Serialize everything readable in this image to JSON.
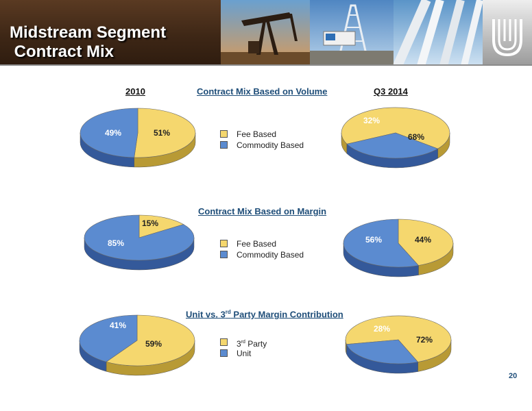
{
  "header": {
    "title_line1": "Midstream Segment",
    "title_line2": " Contract Mix"
  },
  "headings": {
    "year_left": "2010",
    "year_right": "Q3 2014",
    "volume": "Contract Mix Based on Volume",
    "margin": "Contract Mix Based on Margin",
    "unit_vs_party_pre": "Unit vs. 3",
    "unit_vs_party_sup": "rd",
    "unit_vs_party_post": " Party Margin Contribution"
  },
  "legends": {
    "volume": [
      {
        "label": "Fee Based",
        "color": "#f5d76e"
      },
      {
        "label": "Commodity Based",
        "color": "#5b8bd0"
      }
    ],
    "margin": [
      {
        "label": "Fee Based",
        "color": "#f5d76e"
      },
      {
        "label": "Commodity Based",
        "color": "#5b8bd0"
      }
    ],
    "contribution": [
      {
        "label": "3rd Party",
        "label_main": "3",
        "label_sup": "rd",
        "label_rest": " Party",
        "color": "#f5d76e"
      },
      {
        "label": "Unit",
        "color": "#5b8bd0"
      }
    ]
  },
  "colors": {
    "yellow": "#f5d76e",
    "yellow_side": "#b89a35",
    "blue": "#5b8bd0",
    "blue_side": "#34599a",
    "heading_blue": "#1f4e79"
  },
  "page_number": "20",
  "chart_data": [
    {
      "type": "pie",
      "title": "2010",
      "group": "Contract Mix Based on Volume",
      "slices": [
        {
          "name": "Fee Based",
          "value": 51,
          "label": "51%"
        },
        {
          "name": "Commodity Based",
          "value": 49,
          "label": "49%"
        }
      ]
    },
    {
      "type": "pie",
      "title": "Q3 2014",
      "group": "Contract Mix Based on Volume",
      "slices": [
        {
          "name": "Fee Based",
          "value": 68,
          "label": "68%"
        },
        {
          "name": "Commodity Based",
          "value": 32,
          "label": "32%"
        }
      ]
    },
    {
      "type": "pie",
      "title": "2010",
      "group": "Contract Mix Based on Margin",
      "slices": [
        {
          "name": "Fee Based",
          "value": 15,
          "label": "15%"
        },
        {
          "name": "Commodity Based",
          "value": 85,
          "label": "85%"
        }
      ]
    },
    {
      "type": "pie",
      "title": "Q3 2014",
      "group": "Contract Mix Based on Margin",
      "slices": [
        {
          "name": "Fee Based",
          "value": 44,
          "label": "44%"
        },
        {
          "name": "Commodity Based",
          "value": 56,
          "label": "56%"
        }
      ]
    },
    {
      "type": "pie",
      "title": "2010",
      "group": "Unit vs. 3rd Party Margin Contribution",
      "slices": [
        {
          "name": "3rd Party",
          "value": 59,
          "label": "59%"
        },
        {
          "name": "Unit",
          "value": 41,
          "label": "41%"
        }
      ]
    },
    {
      "type": "pie",
      "title": "Q3 2014",
      "group": "Unit vs. 3rd Party Margin Contribution",
      "slices": [
        {
          "name": "3rd Party",
          "value": 72,
          "label": "72%"
        },
        {
          "name": "Unit",
          "value": 28,
          "label": "28%"
        }
      ]
    }
  ]
}
